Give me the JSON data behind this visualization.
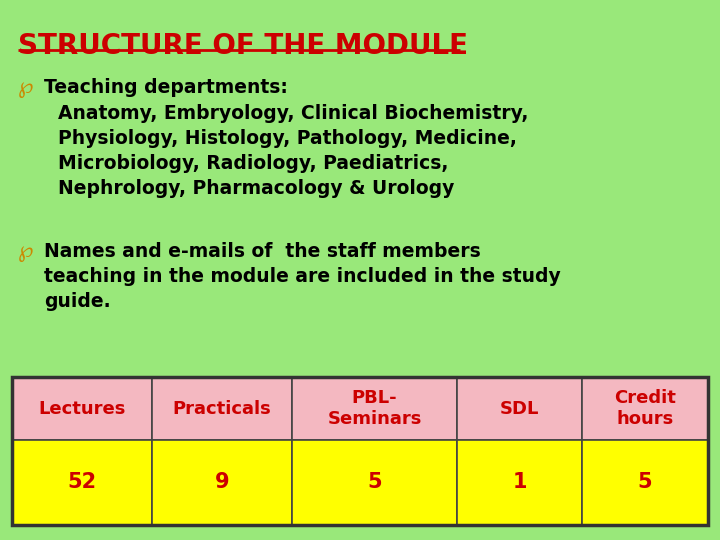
{
  "title": "STRUCTURE OF THE MODULE",
  "title_color": "#cc0000",
  "bg_color": "#99e87a",
  "bullet_char": "℘",
  "bullet1_line1": "Teaching departments:",
  "bullet1_body": "Anatomy, Embryology, Clinical Biochemistry,\nPhysiology, Histology, Pathology, Medicine,\nMicrobiology, Radiology, Paediatrics,\nNephrology, Pharmacology & Urology",
  "bullet2_line1": "Names and e-mails of  the staff members",
  "bullet2_body": "teaching in the module are included in the study\nguide.",
  "table_headers": [
    "Lectures",
    "Practicals",
    "PBL-\nSeminars",
    "SDL",
    "Credit\nhours"
  ],
  "table_values": [
    "52",
    "9",
    "5",
    "1",
    "5"
  ],
  "header_bg": "#f4b8c1",
  "value_bg": "#ffff00",
  "table_text_color": "#cc0000",
  "text_color": "#000000",
  "body_fontsize": 13.5,
  "title_fontsize": 20,
  "bullet_fontsize": 16,
  "table_header_fontsize": 13,
  "table_value_fontsize": 15
}
